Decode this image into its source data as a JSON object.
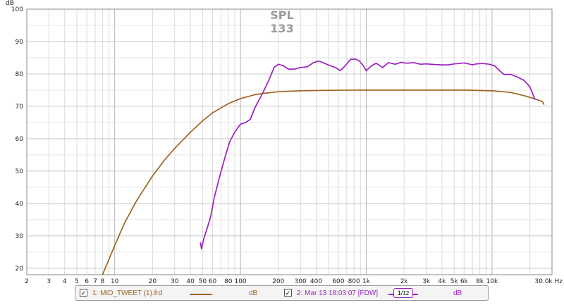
{
  "chart_data": {
    "type": "line",
    "title": "SPL",
    "subtitle": "133",
    "ylabel": "dB",
    "xunit": "Hz",
    "x_scale": "log",
    "xlim": [
      2,
      30000
    ],
    "ylim": [
      18,
      100
    ],
    "grid": true,
    "y_ticks": [
      20,
      30,
      40,
      50,
      60,
      70,
      80,
      90,
      100
    ],
    "x_ticks": [
      {
        "v": 2,
        "t": "2"
      },
      {
        "v": 3,
        "t": "3"
      },
      {
        "v": 4,
        "t": "4"
      },
      {
        "v": 5,
        "t": "5"
      },
      {
        "v": 6,
        "t": "6"
      },
      {
        "v": 7,
        "t": "7"
      },
      {
        "v": 8,
        "t": "8"
      },
      {
        "v": 10,
        "t": "10"
      },
      {
        "v": 20,
        "t": "20"
      },
      {
        "v": 30,
        "t": "30"
      },
      {
        "v": 40,
        "t": "40"
      },
      {
        "v": 50,
        "t": "50"
      },
      {
        "v": 60,
        "t": "60"
      },
      {
        "v": 80,
        "t": "80"
      },
      {
        "v": 100,
        "t": "100"
      },
      {
        "v": 200,
        "t": "200"
      },
      {
        "v": 300,
        "t": "300"
      },
      {
        "v": 400,
        "t": "400"
      },
      {
        "v": 600,
        "t": "600"
      },
      {
        "v": 800,
        "t": "800"
      },
      {
        "v": 1000,
        "t": "1k"
      },
      {
        "v": 2000,
        "t": "2k"
      },
      {
        "v": 3000,
        "t": "3k"
      },
      {
        "v": 4000,
        "t": "4k"
      },
      {
        "v": 5000,
        "t": "5k"
      },
      {
        "v": 6000,
        "t": "6k"
      },
      {
        "v": 8000,
        "t": "8k"
      },
      {
        "v": 10000,
        "t": "10k"
      },
      {
        "v": 30000,
        "t": "30.0k Hz"
      }
    ],
    "series": [
      {
        "name": "1: MID_TWEET (1).frd",
        "color": "#a0621e",
        "points": [
          [
            8,
            18
          ],
          [
            10,
            27
          ],
          [
            12,
            34
          ],
          [
            15,
            41
          ],
          [
            20,
            48.5
          ],
          [
            25,
            53.5
          ],
          [
            30,
            57
          ],
          [
            40,
            62
          ],
          [
            50,
            65.5
          ],
          [
            60,
            68
          ],
          [
            80,
            70.8
          ],
          [
            100,
            72.4
          ],
          [
            130,
            73.6
          ],
          [
            160,
            74.1
          ],
          [
            200,
            74.5
          ],
          [
            300,
            74.8
          ],
          [
            500,
            74.95
          ],
          [
            1000,
            75
          ],
          [
            3000,
            75
          ],
          [
            6000,
            75
          ],
          [
            10000,
            74.8
          ],
          [
            14000,
            74.3
          ],
          [
            18000,
            73.3
          ],
          [
            22000,
            72.3
          ],
          [
            25000,
            71.5
          ],
          [
            26000,
            70.5
          ]
        ]
      },
      {
        "name": "2: Mar 13 18:03:07 [FDW]",
        "color": "#9b1fbf",
        "points": [
          [
            48,
            28
          ],
          [
            49,
            26
          ],
          [
            51,
            29
          ],
          [
            55,
            33
          ],
          [
            58,
            36
          ],
          [
            62,
            42
          ],
          [
            68,
            48
          ],
          [
            75,
            54
          ],
          [
            82,
            59
          ],
          [
            90,
            62
          ],
          [
            100,
            64.5
          ],
          [
            110,
            65
          ],
          [
            120,
            66
          ],
          [
            130,
            69.5
          ],
          [
            150,
            74
          ],
          [
            170,
            78.5
          ],
          [
            185,
            82
          ],
          [
            200,
            83
          ],
          [
            220,
            82.5
          ],
          [
            240,
            81.5
          ],
          [
            270,
            81.5
          ],
          [
            300,
            82
          ],
          [
            340,
            82.2
          ],
          [
            380,
            83.5
          ],
          [
            420,
            84
          ],
          [
            470,
            83.2
          ],
          [
            520,
            82.5
          ],
          [
            570,
            82
          ],
          [
            620,
            81
          ],
          [
            680,
            82.5
          ],
          [
            750,
            84.5
          ],
          [
            820,
            84.6
          ],
          [
            880,
            84
          ],
          [
            950,
            82.5
          ],
          [
            1000,
            81
          ],
          [
            1100,
            82.5
          ],
          [
            1200,
            83.3
          ],
          [
            1350,
            82
          ],
          [
            1500,
            83.5
          ],
          [
            1700,
            83
          ],
          [
            1900,
            83.6
          ],
          [
            2100,
            83.3
          ],
          [
            2400,
            83.5
          ],
          [
            2700,
            83
          ],
          [
            3000,
            83.1
          ],
          [
            3500,
            82.9
          ],
          [
            4000,
            82.8
          ],
          [
            4500,
            82.8
          ],
          [
            5000,
            83.1
          ],
          [
            5500,
            83.2
          ],
          [
            6000,
            83.4
          ],
          [
            6500,
            83.1
          ],
          [
            7000,
            82.8
          ],
          [
            7500,
            83.1
          ],
          [
            8500,
            83.2
          ],
          [
            9500,
            83
          ],
          [
            10500,
            82.5
          ],
          [
            11500,
            81
          ],
          [
            12500,
            79.8
          ],
          [
            14000,
            79.9
          ],
          [
            16000,
            79
          ],
          [
            18000,
            78
          ],
          [
            20000,
            76
          ],
          [
            22000,
            72
          ]
        ]
      }
    ]
  },
  "legend": {
    "item1": {
      "check": "✓",
      "label": "1: MID_TWEET (1).frd",
      "unit": "dB"
    },
    "item2": {
      "check": "✓",
      "label": "2: Mar 13 18:03:07 [FDW]",
      "smoothing_num": "1",
      "smoothing_den": "12",
      "unit": "dB"
    }
  }
}
